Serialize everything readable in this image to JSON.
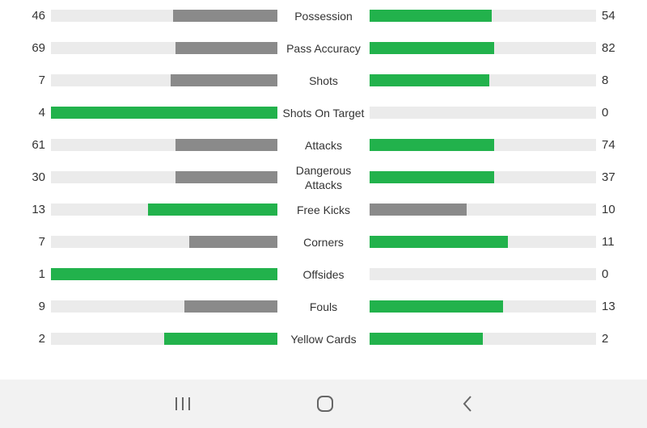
{
  "colors": {
    "highlight": "#22b24c",
    "neutral": "#8a8a8a",
    "track": "#ebebeb",
    "navbar_bg": "#f2f2f2",
    "nav_icon": "#666666"
  },
  "stats": [
    {
      "label": "Possession",
      "home": 46,
      "away": 54,
      "home_fill": 0.46,
      "away_fill": 0.54,
      "home_highlight": false,
      "away_highlight": true
    },
    {
      "label": "Pass Accuracy",
      "home": 69,
      "away": 82,
      "home_fill": 0.45,
      "away_fill": 0.55,
      "home_highlight": false,
      "away_highlight": true
    },
    {
      "label": "Shots",
      "home": 7,
      "away": 8,
      "home_fill": 0.47,
      "away_fill": 0.53,
      "home_highlight": false,
      "away_highlight": true
    },
    {
      "label": "Shots On Target",
      "home": 4,
      "away": 0,
      "home_fill": 1.0,
      "away_fill": 0.0,
      "home_highlight": true,
      "away_highlight": false
    },
    {
      "label": "Attacks",
      "home": 61,
      "away": 74,
      "home_fill": 0.45,
      "away_fill": 0.55,
      "home_highlight": false,
      "away_highlight": true
    },
    {
      "label": "Dangerous Attacks",
      "home": 30,
      "away": 37,
      "home_fill": 0.45,
      "away_fill": 0.55,
      "home_highlight": false,
      "away_highlight": true
    },
    {
      "label": "Free Kicks",
      "home": 13,
      "away": 10,
      "home_fill": 0.57,
      "away_fill": 0.43,
      "home_highlight": true,
      "away_highlight": false
    },
    {
      "label": "Corners",
      "home": 7,
      "away": 11,
      "home_fill": 0.39,
      "away_fill": 0.61,
      "home_highlight": false,
      "away_highlight": true
    },
    {
      "label": "Offsides",
      "home": 1,
      "away": 0,
      "home_fill": 1.0,
      "away_fill": 0.0,
      "home_highlight": true,
      "away_highlight": false
    },
    {
      "label": "Fouls",
      "home": 9,
      "away": 13,
      "home_fill": 0.41,
      "away_fill": 0.59,
      "home_highlight": false,
      "away_highlight": true
    },
    {
      "label": "Yellow Cards",
      "home": 2,
      "away": 2,
      "home_fill": 0.5,
      "away_fill": 0.5,
      "home_highlight": true,
      "away_highlight": true
    }
  ],
  "navbar": {
    "recents_icon": "recent-apps-icon",
    "home_icon": "home-icon",
    "back_icon": "back-icon"
  }
}
